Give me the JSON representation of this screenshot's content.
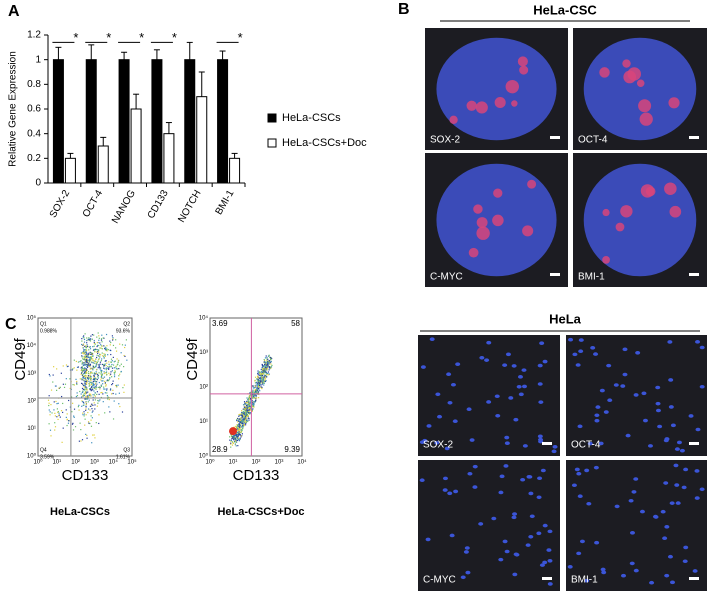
{
  "panel_a": {
    "label": "A"
  },
  "chart_data": {
    "type": "bar",
    "y_label": "Relative Gene Expression",
    "categories": [
      "SOX-2",
      "OCT-4",
      "NANOG",
      "CD133",
      "NOTCH",
      "BMI-1"
    ],
    "series": [
      {
        "name": "HeLa-CSCs",
        "color": "#000000",
        "values": [
          1,
          1,
          1,
          1,
          1,
          1
        ],
        "errors": [
          0.1,
          0.12,
          0.06,
          0.08,
          0.14,
          0.07
        ]
      },
      {
        "name": "HeLa-CSCs+Doc",
        "color": "#ffffff",
        "values": [
          0.2,
          0.3,
          0.6,
          0.4,
          0.7,
          0.2
        ],
        "errors": [
          0.04,
          0.07,
          0.12,
          0.09,
          0.2,
          0.04
        ]
      }
    ],
    "significance": [
      "*",
      "*",
      "*",
      "*",
      null,
      "*"
    ],
    "ylim": [
      0,
      1.2
    ],
    "yticks": [
      0,
      0.2,
      0.4,
      0.6,
      0.8,
      1,
      1.2
    ],
    "legend": "right"
  },
  "panel_b": {
    "label": "B",
    "title": "HeLa-CSC",
    "images": [
      {
        "label": "SOX-2"
      },
      {
        "label": "OCT-4"
      },
      {
        "label": "C-MYC"
      },
      {
        "label": "BMI-1"
      }
    ]
  },
  "panel_hela": {
    "title": "HeLa",
    "images": [
      {
        "label": "SOX-2"
      },
      {
        "label": "OCT-4"
      },
      {
        "label": "C-MYC"
      },
      {
        "label": "BMI-1"
      }
    ]
  },
  "panel_c": {
    "label": "C",
    "plots": [
      {
        "y_label": "CD49f",
        "x_label": "CD133",
        "caption": "HeLa-CSCs",
        "quadrants": [
          {
            "name": "Q1",
            "value": "0.988%"
          },
          {
            "name": "Q2",
            "value": "93.6%"
          },
          {
            "name": "Q4",
            "value": "3.59%"
          },
          {
            "name": "Q3",
            "value": "1.61%"
          }
        ],
        "xticks": [
          "10⁰",
          "10¹",
          "10²",
          "10³",
          "10⁴",
          "10⁵"
        ],
        "yticks": [
          "10⁰",
          "10¹",
          "10²",
          "10³",
          "10⁴",
          "10⁵"
        ]
      },
      {
        "y_label": "CD49f",
        "x_label": "CD133",
        "caption": "HeLa-CSCs+Doc",
        "quadrants": [
          {
            "value": "3.69"
          },
          {
            "value": "58"
          },
          {
            "value": "28.9"
          },
          {
            "value": "9.39"
          }
        ],
        "xticks": [
          "10⁰",
          "10¹",
          "10²",
          "10³",
          "10⁴"
        ],
        "yticks": [
          "10⁰",
          "10¹",
          "10²",
          "10³",
          "10⁴"
        ]
      }
    ]
  }
}
